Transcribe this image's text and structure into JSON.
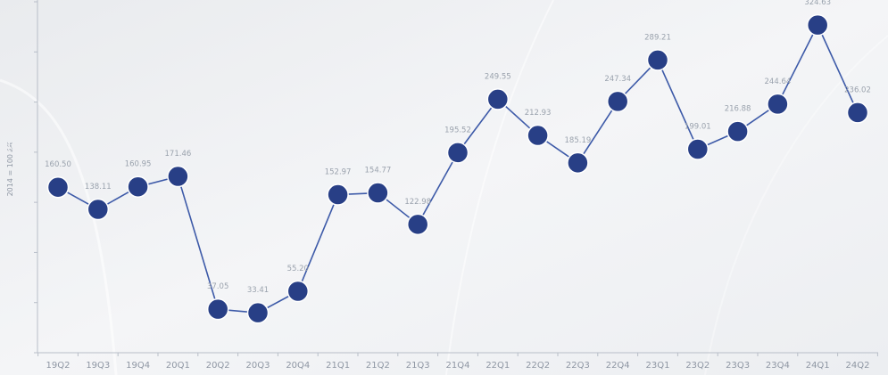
{
  "chart_data": {
    "type": "line",
    "title": "",
    "xlabel": "",
    "ylabel": "ޑަރަޖަ 100 = 2014",
    "categories": [
      "19Q2",
      "19Q3",
      "19Q4",
      "20Q1",
      "20Q2",
      "20Q3",
      "20Q4",
      "21Q1",
      "21Q2",
      "21Q3",
      "21Q4",
      "22Q1",
      "22Q2",
      "22Q3",
      "22Q4",
      "23Q1",
      "23Q2",
      "23Q3",
      "23Q4",
      "24Q1",
      "24Q2"
    ],
    "series": [
      {
        "values": [
          160.5,
          138.11,
          160.95,
          171.46,
          37.05,
          33.41,
          55.2,
          152.97,
          154.77,
          122.98,
          195.52,
          249.55,
          212.93,
          185.19,
          247.34,
          289.21,
          199.01,
          216.88,
          244.64,
          324.63,
          236.02
        ],
        "labels": [
          "160.50",
          "138.11",
          "160.95",
          "171.46",
          "37.05",
          "33.41",
          "55.20",
          "152.97",
          "154.77",
          "122.98",
          "195.52",
          "249.55",
          "212.93",
          "185.19",
          "247.34",
          "289.21",
          "199.01",
          "216.88",
          "244.64",
          "324.63",
          "236.02"
        ],
        "color": "#283f86",
        "line_color": "#3d5aa8"
      }
    ],
    "ylim": [
      -7,
      350
    ],
    "grid": false,
    "axis_color": "#b8bec8",
    "background_color": "#f3f4f6"
  }
}
